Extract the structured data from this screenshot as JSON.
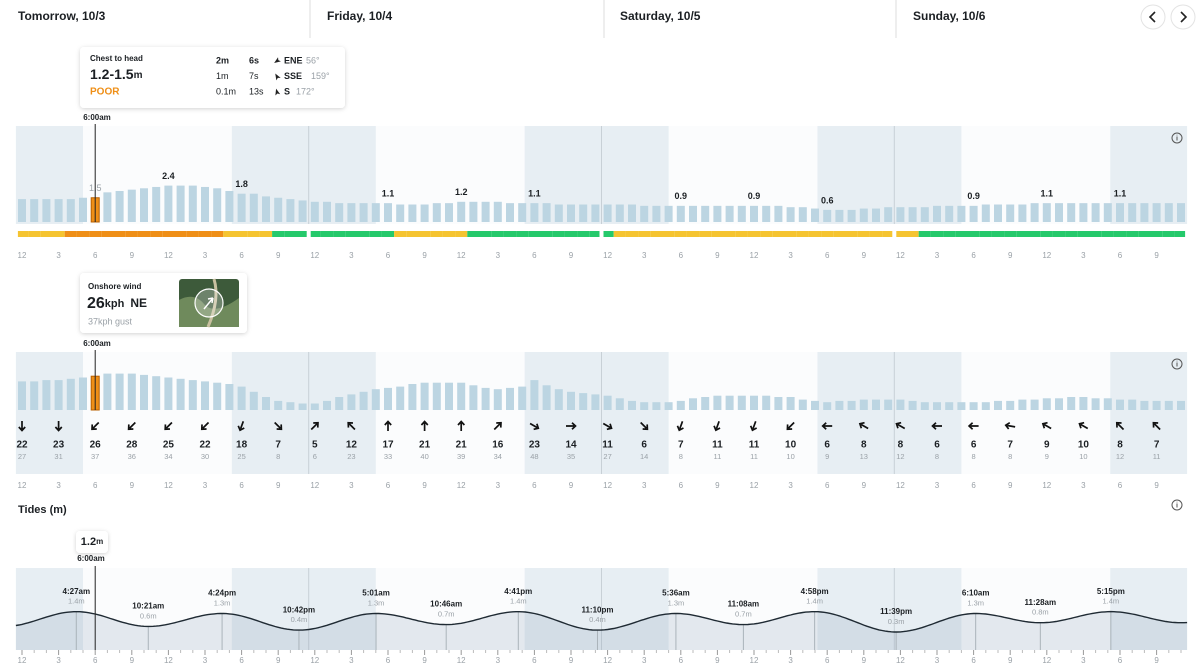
{
  "header": {
    "days": [
      "Tomorrow, 10/3",
      "Friday, 10/4",
      "Saturday, 10/5",
      "Sunday, 10/6"
    ]
  },
  "surf_tooltip": {
    "title": "Chest to head",
    "height": "1.2-1.5",
    "unit": "m",
    "rating": "POOR",
    "swells": [
      {
        "height": "2m",
        "period": "6s",
        "direction": "ENE",
        "degrees": "56°"
      },
      {
        "height": "1m",
        "period": "7s",
        "direction": "SSE",
        "degrees": "159°"
      },
      {
        "height": "0.1m",
        "period": "13s",
        "direction": "S",
        "degrees": "172°"
      }
    ],
    "time": "6:00am"
  },
  "wind_tooltip": {
    "title": "Onshore wind",
    "speed": "26",
    "unit": "kph",
    "direction": "NE",
    "gust": "37kph gust",
    "time": "6:00am"
  },
  "tides": {
    "title": "Tides (m)",
    "current": "1.2",
    "unit": "m",
    "time": "6:00am"
  },
  "time_axis": {
    "xticks": [
      {
        "value": 0,
        "label": "12"
      },
      3,
      6,
      9,
      12,
      {
        "value": 15,
        "label": "3"
      },
      {
        "value": 18,
        "label": "6"
      },
      {
        "value": 21,
        "label": "9"
      },
      {
        "value": 24,
        "label": "12"
      },
      {
        "value": 27,
        "label": "3"
      },
      {
        "value": 30,
        "label": "6"
      },
      {
        "value": 33,
        "label": "9"
      },
      {
        "value": 36,
        "label": "12"
      },
      {
        "value": 39,
        "label": "3"
      },
      {
        "value": 42,
        "label": "6"
      },
      {
        "value": 45,
        "label": "9"
      },
      {
        "value": 48,
        "label": "12"
      },
      {
        "value": 51,
        "label": "3"
      },
      {
        "value": 54,
        "label": "6"
      },
      {
        "value": 57,
        "label": "9"
      },
      {
        "value": 60,
        "label": "12"
      },
      {
        "value": 63,
        "label": "3"
      },
      {
        "value": 66,
        "label": "6"
      },
      {
        "value": 69,
        "label": "9"
      },
      {
        "value": 72,
        "label": "12"
      },
      {
        "value": 75,
        "label": "3"
      },
      {
        "value": 78,
        "label": "6"
      },
      {
        "value": 81,
        "label": "9"
      },
      {
        "value": 84,
        "label": "12"
      },
      {
        "value": 87,
        "label": "3"
      },
      {
        "value": 90,
        "label": "6"
      },
      {
        "value": 93,
        "label": "9"
      }
    ]
  },
  "chart_data": [
    {
      "type": "bar",
      "color": "#bcd5e2",
      "selected_color": "#ef8f17",
      "selected_index": 6,
      "values": [
        1.4,
        1.4,
        1.4,
        1.4,
        1.4,
        1.5,
        1.5,
        1.9,
        2.0,
        2.1,
        2.2,
        2.3,
        2.4,
        2.4,
        2.4,
        2.3,
        2.2,
        2.0,
        1.8,
        1.8,
        1.6,
        1.5,
        1.4,
        1.3,
        1.2,
        1.2,
        1.1,
        1.1,
        1.1,
        1.1,
        1.1,
        1.0,
        1.0,
        1.0,
        1.1,
        1.1,
        1.2,
        1.2,
        1.2,
        1.2,
        1.1,
        1.1,
        1.1,
        1.1,
        1.0,
        1.0,
        1.0,
        1.0,
        1.0,
        1.0,
        1.0,
        0.9,
        0.9,
        0.9,
        0.9,
        0.9,
        0.9,
        0.9,
        0.9,
        0.9,
        0.9,
        0.9,
        0.9,
        0.8,
        0.8,
        0.7,
        0.6,
        0.6,
        0.6,
        0.7,
        0.7,
        0.8,
        0.8,
        0.8,
        0.8,
        0.9,
        0.9,
        0.9,
        0.9,
        1.0,
        1.0,
        1.0,
        1.0,
        1.1,
        1.1,
        1.1,
        1.1,
        1.1,
        1.1,
        1.1,
        1.1,
        1.1,
        1.1,
        1.1,
        1.1,
        1.1
      ],
      "value_labels": [
        null,
        null,
        null,
        null,
        null,
        null,
        "1.5",
        null,
        null,
        null,
        null,
        null,
        "2.4",
        null,
        null,
        null,
        null,
        null,
        "1.8",
        null,
        null,
        null,
        null,
        null,
        null,
        null,
        null,
        null,
        null,
        null,
        "1.1",
        null,
        null,
        null,
        null,
        null,
        "1.2",
        null,
        null,
        null,
        null,
        null,
        "1.1",
        null,
        null,
        null,
        null,
        null,
        null,
        null,
        null,
        null,
        null,
        null,
        "0.9",
        null,
        null,
        null,
        null,
        null,
        "0.9",
        null,
        null,
        null,
        null,
        null,
        "0.6",
        null,
        null,
        null,
        null,
        null,
        null,
        null,
        null,
        null,
        null,
        null,
        "0.9",
        null,
        null,
        null,
        null,
        null,
        "1.1",
        null,
        null,
        null,
        null,
        null,
        "1.1",
        null,
        null,
        null,
        null,
        null
      ],
      "rating_colors": [
        "#f5c431",
        "#f5c431",
        "#f5c431",
        "#f5c431",
        "#ef8f17",
        "#ef8f17",
        "#ef8f17",
        "#ef8f17",
        "#ef8f17",
        "#ef8f17",
        "#ef8f17",
        "#ef8f17",
        "#ef8f17",
        "#ef8f17",
        "#ef8f17",
        "#ef8f17",
        "#ef8f17",
        "#f5c431",
        "#f5c431",
        "#f5c431",
        "#f5c431",
        "#25c96b",
        "#25c96b",
        "#25c96b",
        "#25c96b",
        "#25c96b",
        "#25c96b",
        "#25c96b",
        "#25c96b",
        "#25c96b",
        "#25c96b",
        "#f5c431",
        "#f5c431",
        "#f5c431",
        "#f5c431",
        "#f5c431",
        "#f5c431",
        "#25c96b",
        "#25c96b",
        "#25c96b",
        "#25c96b",
        "#25c96b",
        "#25c96b",
        "#25c96b",
        "#25c96b",
        "#25c96b",
        "#25c96b",
        "#25c96b",
        "#25c96b",
        "#f5c431",
        "#f5c431",
        "#f5c431",
        "#f5c431",
        "#f5c431",
        "#f5c431",
        "#f5c431",
        "#f5c431",
        "#f5c431",
        "#f5c431",
        "#f5c431",
        "#f5c431",
        "#f5c431",
        "#f5c431",
        "#f5c431",
        "#f5c431",
        "#f5c431",
        "#f5c431",
        "#f5c431",
        "#f5c431",
        "#f5c431",
        "#f5c431",
        "#f5c431",
        "#f5c431",
        "#f5c431",
        "#25c96b",
        "#25c96b",
        "#25c96b",
        "#25c96b",
        "#25c96b",
        "#25c96b",
        "#25c96b",
        "#25c96b",
        "#25c96b",
        "#25c96b",
        "#25c96b",
        "#25c96b",
        "#25c96b",
        "#25c96b",
        "#25c96b",
        "#25c96b",
        "#25c96b",
        "#25c96b",
        "#25c96b",
        "#25c96b",
        "#25c96b",
        "#25c96b"
      ]
    },
    {
      "type": "bar",
      "color": "#bcd5e2",
      "selected_color": "#ef8f17",
      "selected_index": 6,
      "values": [
        22,
        22,
        23,
        23,
        24,
        25,
        26,
        28,
        28,
        28,
        27,
        26,
        25,
        24,
        23,
        22,
        21,
        20,
        18,
        14,
        10,
        7,
        6,
        5,
        5,
        7,
        10,
        12,
        14,
        16,
        17,
        18,
        20,
        21,
        21,
        21,
        21,
        19,
        17,
        16,
        17,
        18,
        23,
        19,
        16,
        14,
        13,
        12,
        11,
        9,
        7,
        6,
        6,
        6,
        7,
        9,
        10,
        11,
        11,
        11,
        11,
        11,
        10,
        10,
        8,
        7,
        6,
        7,
        7,
        8,
        8,
        8,
        8,
        7,
        6,
        6,
        6,
        6,
        6,
        6,
        7,
        7,
        8,
        8,
        9,
        9,
        10,
        10,
        9,
        9,
        8,
        8,
        7,
        7,
        7,
        7
      ],
      "gusts": [
        27,
        31,
        37,
        36,
        34,
        30,
        25,
        8,
        6,
        23,
        33,
        40,
        39,
        34,
        48,
        35,
        27,
        14,
        8,
        11,
        11,
        10,
        9,
        13,
        12,
        8,
        8,
        8,
        9,
        10,
        12,
        11
      ],
      "directions": [
        180,
        180,
        225,
        225,
        225,
        225,
        200,
        135,
        45,
        315,
        0,
        0,
        0,
        45,
        120,
        90,
        120,
        135,
        200,
        200,
        200,
        225,
        270,
        300,
        300,
        270,
        270,
        280,
        300,
        300,
        315,
        315
      ]
    },
    {
      "type": "line",
      "color": "#1f2a33",
      "selected_index": 6,
      "extremes": [
        {
          "x": {
            "value": 4.45,
            "label": "4:27am"
          },
          "y": {
            "value": 1.4,
            "label": "1.4m"
          }
        },
        {
          "x": {
            "value": 10.35,
            "label": "10:21am"
          },
          "y": {
            "value": 0.6,
            "label": "0.6m"
          }
        },
        {
          "x": {
            "value": 16.4,
            "label": "4:24pm"
          },
          "y": {
            "value": 1.3,
            "label": "1.3m"
          }
        },
        {
          "x": {
            "value": 22.7,
            "label": "10:42pm"
          },
          "y": {
            "value": 0.4,
            "label": "0.4m"
          }
        },
        {
          "x": {
            "value": 29.02,
            "label": "5:01am"
          },
          "y": {
            "value": 1.3,
            "label": "1.3m"
          }
        },
        {
          "x": {
            "value": 34.77,
            "label": "10:46am"
          },
          "y": {
            "value": 0.7,
            "label": "0.7m"
          }
        },
        {
          "x": {
            "value": 40.68,
            "label": "4:41pm"
          },
          "y": {
            "value": 1.4,
            "label": "1.4m"
          }
        },
        {
          "x": {
            "value": 47.17,
            "label": "11:10pm"
          },
          "y": {
            "value": 0.4,
            "label": "0.4m"
          }
        },
        {
          "x": {
            "value": 53.6,
            "label": "5:36am"
          },
          "y": {
            "value": 1.3,
            "label": "1.3m"
          }
        },
        {
          "x": {
            "value": 59.13,
            "label": "11:08am"
          },
          "y": {
            "value": 0.7,
            "label": "0.7m"
          }
        },
        {
          "x": {
            "value": 64.97,
            "label": "4:58pm"
          },
          "y": {
            "value": 1.4,
            "label": "1.4m"
          }
        },
        {
          "x": {
            "value": 71.65,
            "label": "11:39pm"
          },
          "y": {
            "value": 0.3,
            "label": "0.3m"
          }
        },
        {
          "x": {
            "value": 78.17,
            "label": "6:10am"
          },
          "y": {
            "value": 1.3,
            "label": "1.3m"
          }
        },
        {
          "x": {
            "value": 83.47,
            "label": "11:28am"
          },
          "y": {
            "value": 0.8,
            "label": "0.8m"
          }
        },
        {
          "x": {
            "value": 89.25,
            "label": "5:15pm"
          },
          "y": {
            "value": 1.4,
            "label": "1.4m"
          }
        }
      ]
    }
  ]
}
